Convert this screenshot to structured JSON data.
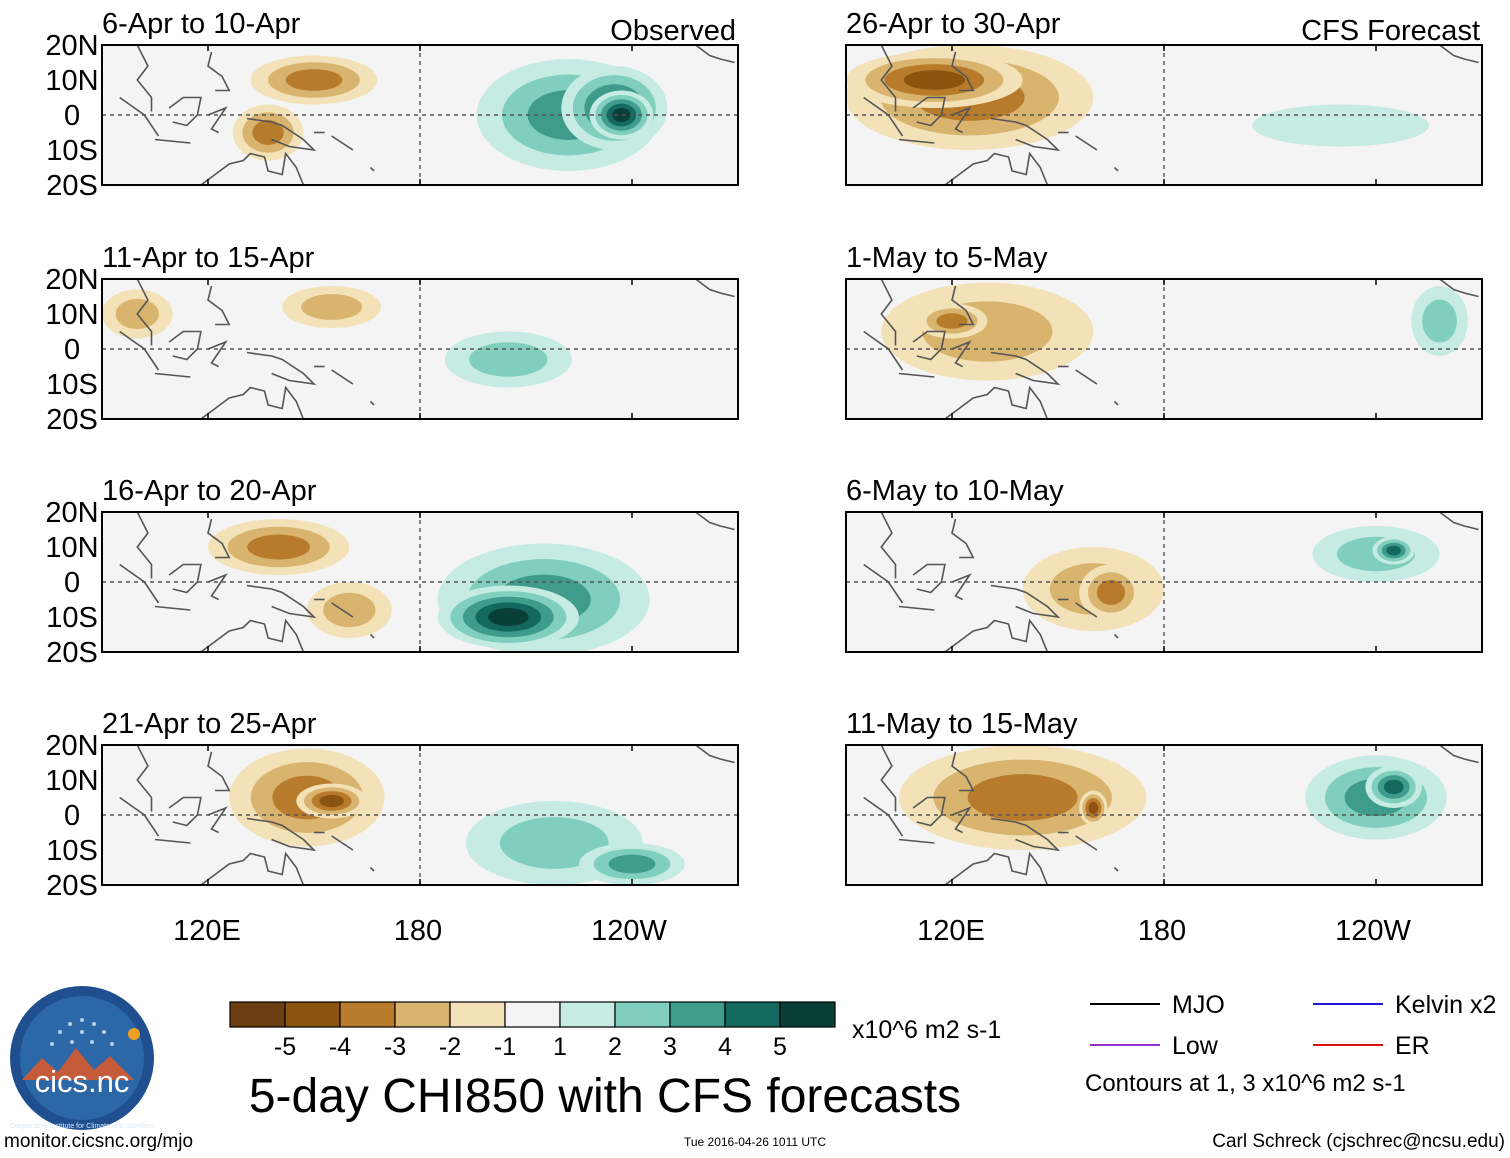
{
  "colors": {
    "shade": [
      "#6b3f12",
      "#8c520f",
      "#b87b2c",
      "#d8b46e",
      "#f3e2b8",
      "#f4f4f4",
      "#c5ebe2",
      "#80cfbe",
      "#3f9b8a",
      "#13695e",
      "#0a3f38"
    ],
    "mjo": "#000000",
    "kelvin": "#1a1ad8",
    "low": "#9b30d0",
    "er": "#e01010",
    "grid": "#555555",
    "coast": "#555555"
  },
  "chart_data": {
    "type": "heatmap",
    "variable": "5-day CHI850",
    "title": "5-day CHI850 with CFS forecasts",
    "units": "x10^6 m2 s-1",
    "ylim": [
      -20,
      20
    ],
    "y_ticks": [
      "20N",
      "10N",
      "0",
      "10S",
      "20S"
    ],
    "x_ticks": [
      "120E",
      "180",
      "120W"
    ],
    "panels": [
      {
        "column": "Observed",
        "period": "6-Apr to 10-Apr",
        "tag": "Observed",
        "blobs": [
          {
            "lon": 150,
            "lat": 10,
            "rx": 18,
            "ry": 7,
            "v": -3
          },
          {
            "lon": 137,
            "lat": -5,
            "rx": 10,
            "ry": 8,
            "v": -3
          },
          {
            "lon": 222,
            "lat": 0,
            "rx": 26,
            "ry": 16,
            "v": 3
          },
          {
            "lon": 235,
            "lat": 2,
            "rx": 15,
            "ry": 12,
            "v": 4
          },
          {
            "lon": 237,
            "lat": 0,
            "rx": 9,
            "ry": 7,
            "v": 5
          }
        ]
      },
      {
        "column": "Observed",
        "period": "11-Apr to 15-Apr",
        "tag": "",
        "blobs": [
          {
            "lon": 100,
            "lat": 10,
            "rx": 10,
            "ry": 7,
            "v": -2
          },
          {
            "lon": 155,
            "lat": 12,
            "rx": 14,
            "ry": 6,
            "v": -2
          },
          {
            "lon": 205,
            "lat": -3,
            "rx": 18,
            "ry": 8,
            "v": 2
          }
        ]
      },
      {
        "column": "Observed",
        "period": "16-Apr to 20-Apr",
        "tag": "",
        "blobs": [
          {
            "lon": 140,
            "lat": 10,
            "rx": 20,
            "ry": 8,
            "v": -3
          },
          {
            "lon": 160,
            "lat": -8,
            "rx": 12,
            "ry": 8,
            "v": -2
          },
          {
            "lon": 215,
            "lat": -5,
            "rx": 30,
            "ry": 16,
            "v": 3
          },
          {
            "lon": 205,
            "lat": -10,
            "rx": 20,
            "ry": 9,
            "v": 5
          }
        ]
      },
      {
        "column": "Observed",
        "period": "21-Apr to 25-Apr",
        "tag": "",
        "blobs": [
          {
            "lon": 148,
            "lat": 5,
            "rx": 22,
            "ry": 14,
            "v": -3
          },
          {
            "lon": 155,
            "lat": 4,
            "rx": 10,
            "ry": 5,
            "v": -4
          },
          {
            "lon": 218,
            "lat": -8,
            "rx": 25,
            "ry": 12,
            "v": 2
          },
          {
            "lon": 240,
            "lat": -14,
            "rx": 15,
            "ry": 6,
            "v": 3
          }
        ]
      },
      {
        "column": "CFS Forecast",
        "period": "26-Apr to 30-Apr",
        "tag": "CFS Forecast",
        "blobs": [
          {
            "lon": 125,
            "lat": 5,
            "rx": 35,
            "ry": 15,
            "v": -3
          },
          {
            "lon": 115,
            "lat": 10,
            "rx": 25,
            "ry": 8,
            "v": -4
          },
          {
            "lon": 230,
            "lat": -3,
            "rx": 25,
            "ry": 6,
            "v": 1
          }
        ]
      },
      {
        "column": "CFS Forecast",
        "period": "1-May to 5-May",
        "tag": "",
        "blobs": [
          {
            "lon": 130,
            "lat": 5,
            "rx": 30,
            "ry": 14,
            "v": -2
          },
          {
            "lon": 120,
            "lat": 8,
            "rx": 10,
            "ry": 5,
            "v": -3
          },
          {
            "lon": 258,
            "lat": 8,
            "rx": 8,
            "ry": 10,
            "v": 2
          }
        ]
      },
      {
        "column": "CFS Forecast",
        "period": "6-May to 10-May",
        "tag": "",
        "blobs": [
          {
            "lon": 160,
            "lat": -2,
            "rx": 20,
            "ry": 12,
            "v": -2
          },
          {
            "lon": 165,
            "lat": -3,
            "rx": 9,
            "ry": 8,
            "v": -3
          },
          {
            "lon": 240,
            "lat": 8,
            "rx": 18,
            "ry": 8,
            "v": 2
          },
          {
            "lon": 245,
            "lat": 9,
            "rx": 6,
            "ry": 4,
            "v": 4
          }
        ]
      },
      {
        "column": "CFS Forecast",
        "period": "11-May to 15-May",
        "tag": "",
        "blobs": [
          {
            "lon": 140,
            "lat": 5,
            "rx": 35,
            "ry": 15,
            "v": -3
          },
          {
            "lon": 160,
            "lat": 2,
            "rx": 4,
            "ry": 5,
            "v": -4
          },
          {
            "lon": 240,
            "lat": 5,
            "rx": 20,
            "ry": 12,
            "v": 3
          },
          {
            "lon": 245,
            "lat": 8,
            "rx": 8,
            "ry": 6,
            "v": 4
          }
        ]
      }
    ],
    "colorbar": {
      "levels": [
        "-5",
        "-4",
        "-3",
        "-2",
        "-1",
        "1",
        "2",
        "3",
        "4",
        "5"
      ],
      "units": "x10^6 m2 s-1"
    },
    "legend": {
      "items": [
        {
          "label": "MJO",
          "color_key": "mjo"
        },
        {
          "label": "Kelvin x2",
          "color_key": "kelvin"
        },
        {
          "label": "Low",
          "color_key": "low"
        },
        {
          "label": "ER",
          "color_key": "er"
        }
      ],
      "note": "Contours at 1, 3 x10^6 m2 s-1"
    }
  },
  "footer": {
    "logo_text": "cics.nc",
    "logo_ring_text": "Cooperative Institute for Climate and Satellites",
    "website": "monitor.cicsnc.org/mjo",
    "timestamp": "Tue 2016-04-26 1011 UTC",
    "author": "Carl Schreck (cjschrec@ncsu.edu)"
  }
}
